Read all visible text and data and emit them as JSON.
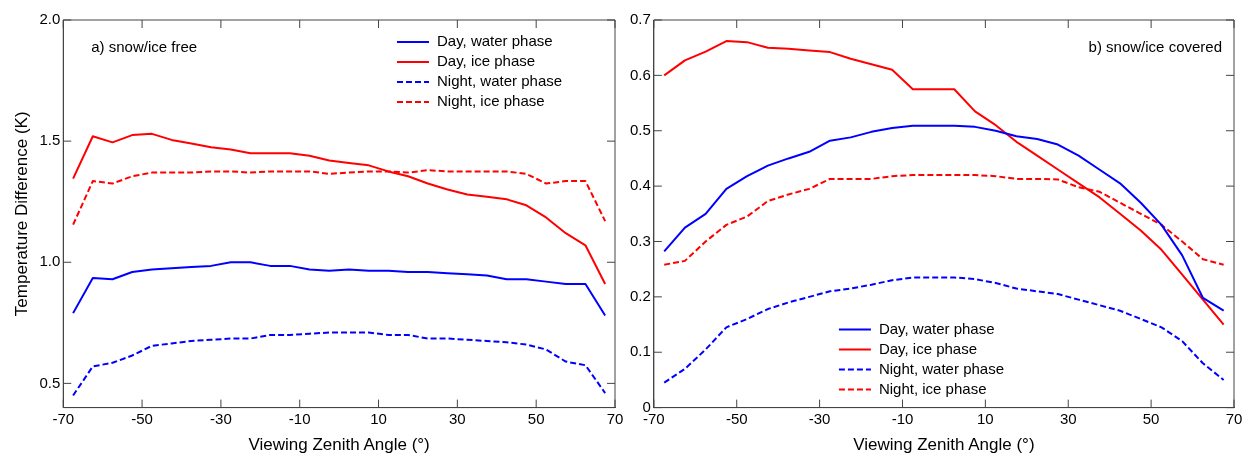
{
  "chart_data": [
    {
      "type": "line",
      "xlabel": "Viewing Zenith Angle (°)",
      "ylabel": "Temperature Difference (K)",
      "annotations": [
        "a) snow/ice free"
      ],
      "legend": "top right",
      "grid": false,
      "x": [
        -67.5,
        -62.5,
        -57.5,
        -52.5,
        -47.5,
        -42.5,
        -37.5,
        -32.5,
        -27.5,
        -22.5,
        -17.5,
        -12.5,
        -7.5,
        -2.5,
        2.5,
        7.5,
        12.5,
        17.5,
        22.5,
        27.5,
        32.5,
        37.5,
        42.5,
        47.5,
        52.5,
        57.5,
        62.5,
        67.5
      ],
      "xlim": [
        -70,
        70
      ],
      "xticks": [
        -70,
        -50,
        -30,
        -10,
        10,
        30,
        50,
        70
      ],
      "ylim": [
        0.4,
        2.0
      ],
      "yticks": [
        {
          "value": 0.5,
          "label": "0.5"
        },
        {
          "value": 1.0,
          "label": "1.0"
        },
        {
          "value": 1.5,
          "label": "1.5"
        },
        {
          "value": 2.0,
          "label": "2.0"
        }
      ],
      "series": [
        {
          "name": "Day, water phase",
          "color": "#0000ff",
          "line_style": "solid",
          "values": [
            0.79,
            0.935,
            0.93,
            0.96,
            0.97,
            0.975,
            0.98,
            0.985,
            1.0,
            1.0,
            0.985,
            0.985,
            0.97,
            0.965,
            0.97,
            0.965,
            0.965,
            0.96,
            0.96,
            0.955,
            0.95,
            0.945,
            0.93,
            0.93,
            0.92,
            0.91,
            0.91,
            0.78
          ]
        },
        {
          "name": "Day, ice phase",
          "color": "#ff0000",
          "line_style": "solid",
          "values": [
            1.345,
            1.52,
            1.495,
            1.525,
            1.53,
            1.505,
            1.49,
            1.475,
            1.465,
            1.45,
            1.45,
            1.45,
            1.44,
            1.42,
            1.41,
            1.4,
            1.375,
            1.355,
            1.325,
            1.3,
            1.28,
            1.27,
            1.26,
            1.235,
            1.185,
            1.12,
            1.07,
            0.91
          ]
        },
        {
          "name": "Night, water phase",
          "color": "#0000ff",
          "line_style": "dashed",
          "values": [
            0.45,
            0.57,
            0.585,
            0.615,
            0.655,
            0.665,
            0.675,
            0.68,
            0.685,
            0.685,
            0.7,
            0.7,
            0.705,
            0.71,
            0.71,
            0.71,
            0.7,
            0.7,
            0.685,
            0.685,
            0.68,
            0.675,
            0.67,
            0.66,
            0.64,
            0.59,
            0.575,
            0.46
          ]
        },
        {
          "name": "Night, ice phase",
          "color": "#ff0000",
          "line_style": "dashed",
          "values": [
            1.155,
            1.335,
            1.325,
            1.355,
            1.37,
            1.37,
            1.37,
            1.375,
            1.375,
            1.37,
            1.375,
            1.375,
            1.375,
            1.365,
            1.37,
            1.375,
            1.375,
            1.37,
            1.38,
            1.375,
            1.375,
            1.375,
            1.375,
            1.365,
            1.325,
            1.335,
            1.335,
            1.17
          ]
        }
      ]
    },
    {
      "type": "line",
      "xlabel": "Viewing Zenith Angle (°)",
      "annotations": [
        "b) snow/ice covered"
      ],
      "legend": "bottom",
      "grid": false,
      "x": [
        -67.5,
        -62.5,
        -57.5,
        -52.5,
        -47.5,
        -42.5,
        -37.5,
        -32.5,
        -27.5,
        -22.5,
        -17.5,
        -12.5,
        -7.5,
        -2.5,
        2.5,
        7.5,
        12.5,
        17.5,
        22.5,
        27.5,
        32.5,
        37.5,
        42.5,
        47.5,
        52.5,
        57.5,
        62.5,
        67.5
      ],
      "xlim": [
        -70,
        70
      ],
      "xticks": [
        -70,
        -50,
        -30,
        -10,
        10,
        30,
        50,
        70
      ],
      "ylim": [
        0,
        0.7
      ],
      "yticks": [
        0,
        0.1,
        0.2,
        0.3,
        0.4,
        0.5,
        0.6,
        0.7
      ],
      "series": [
        {
          "name": "Day, water phase",
          "color": "#0000ff",
          "line_style": "solid",
          "values": [
            0.282,
            0.325,
            0.35,
            0.395,
            0.418,
            0.437,
            0.45,
            0.462,
            0.482,
            0.488,
            0.498,
            0.505,
            0.509,
            0.509,
            0.509,
            0.507,
            0.5,
            0.49,
            0.485,
            0.475,
            0.455,
            0.43,
            0.405,
            0.37,
            0.33,
            0.275,
            0.198,
            0.175
          ]
        },
        {
          "name": "Day, ice phase",
          "color": "#ff0000",
          "line_style": "solid",
          "values": [
            0.6,
            0.627,
            0.643,
            0.662,
            0.66,
            0.65,
            0.648,
            0.645,
            0.642,
            0.63,
            0.62,
            0.61,
            0.575,
            0.575,
            0.575,
            0.535,
            0.51,
            0.48,
            0.455,
            0.43,
            0.405,
            0.38,
            0.35,
            0.32,
            0.285,
            0.24,
            0.195,
            0.15
          ]
        },
        {
          "name": "Night, water phase",
          "color": "#0000ff",
          "line_style": "dashed",
          "values": [
            0.045,
            0.07,
            0.105,
            0.145,
            0.16,
            0.178,
            0.19,
            0.2,
            0.21,
            0.215,
            0.222,
            0.23,
            0.235,
            0.235,
            0.235,
            0.232,
            0.225,
            0.215,
            0.21,
            0.205,
            0.195,
            0.185,
            0.175,
            0.16,
            0.145,
            0.12,
            0.08,
            0.05
          ]
        },
        {
          "name": "Night, ice phase",
          "color": "#ff0000",
          "line_style": "dashed",
          "values": [
            0.258,
            0.265,
            0.3,
            0.33,
            0.345,
            0.373,
            0.385,
            0.395,
            0.413,
            0.413,
            0.413,
            0.418,
            0.42,
            0.42,
            0.42,
            0.42,
            0.418,
            0.413,
            0.413,
            0.412,
            0.398,
            0.39,
            0.37,
            0.35,
            0.33,
            0.3,
            0.268,
            0.258
          ]
        }
      ]
    }
  ]
}
